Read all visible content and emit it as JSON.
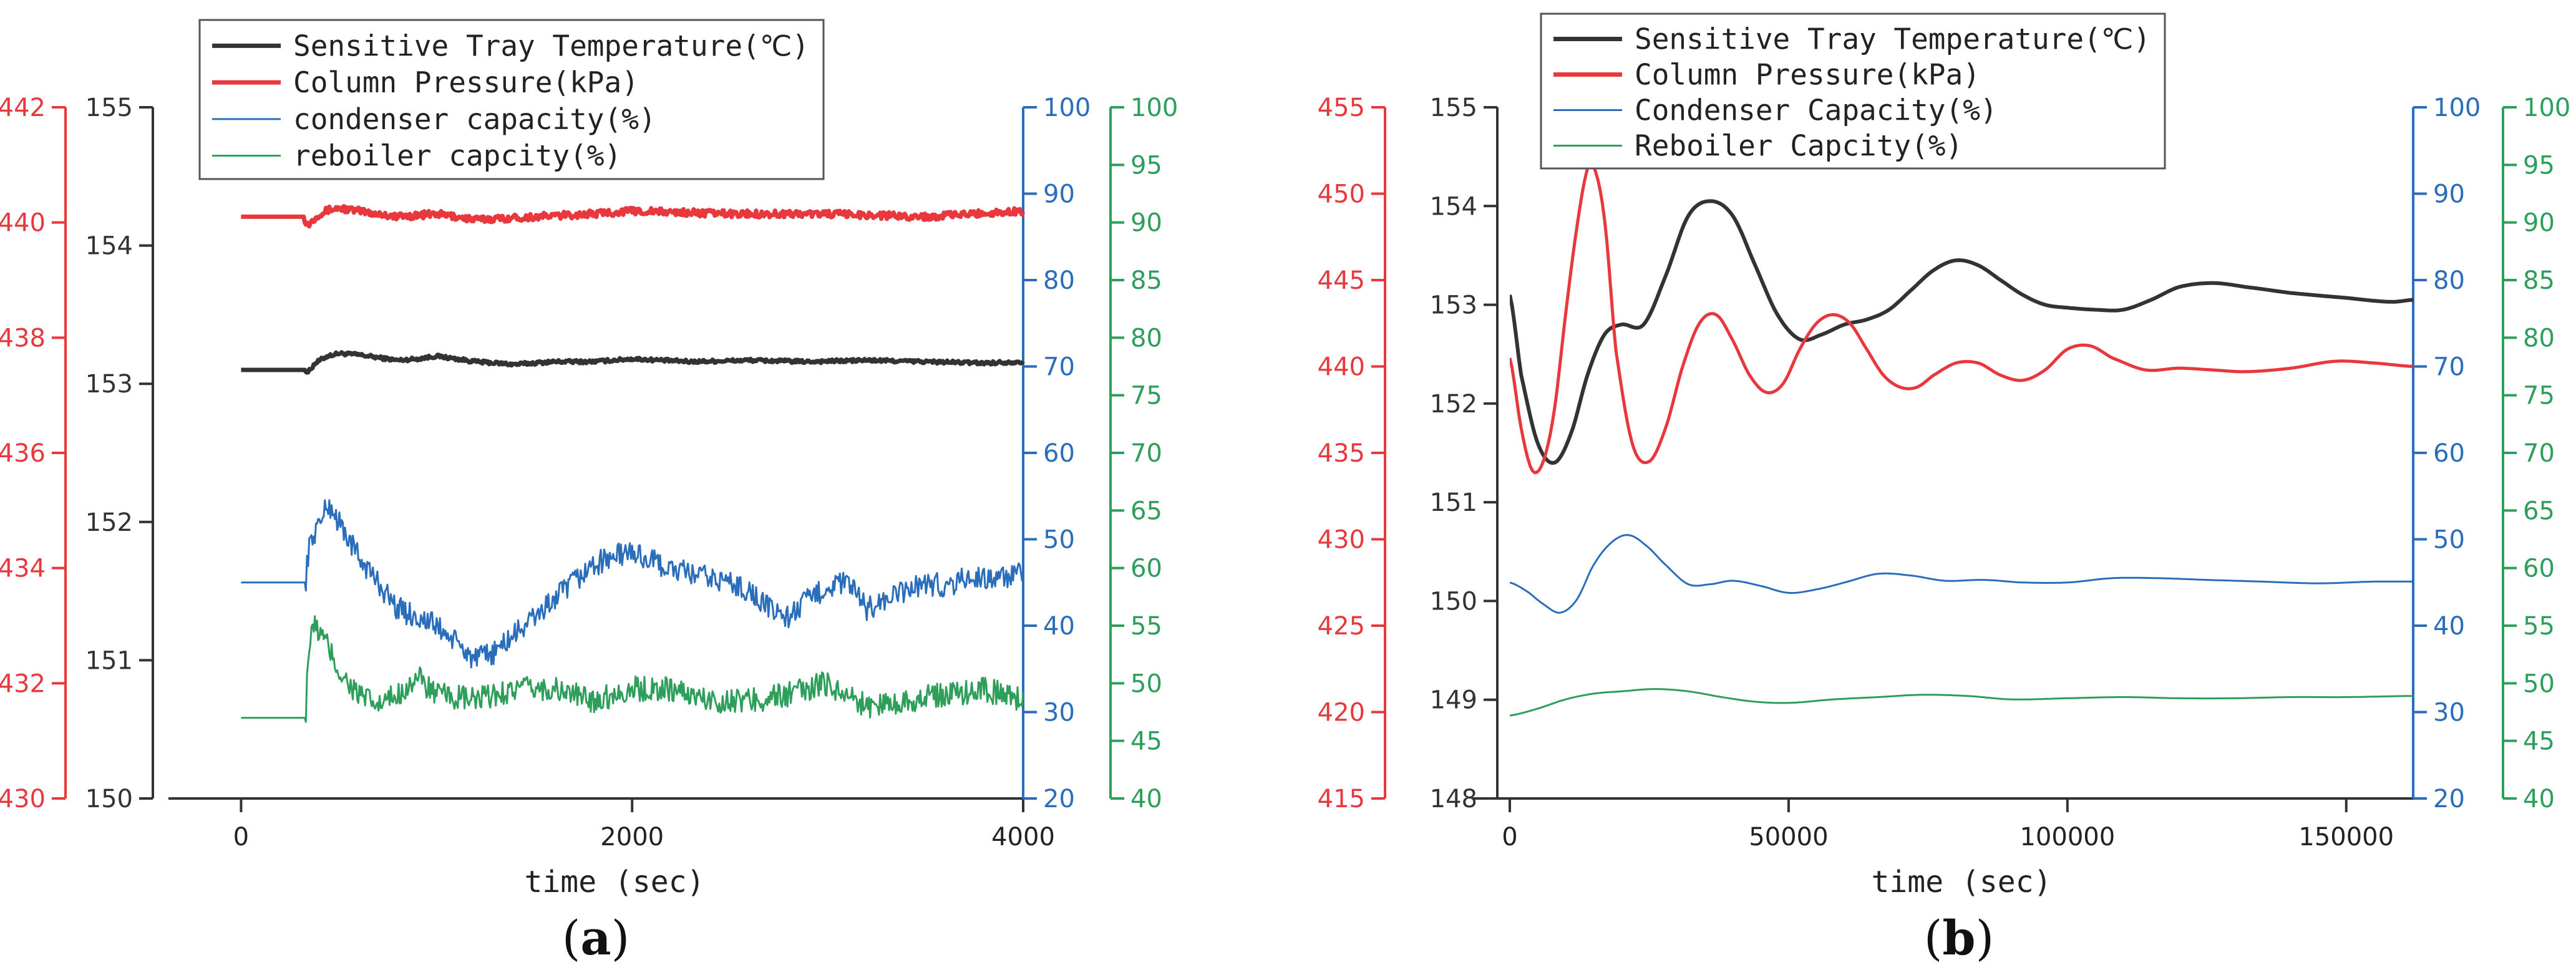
{
  "chart_data": [
    {
      "type": "line",
      "panel_label": "(a)",
      "xlabel": "time (sec)",
      "xlim": [
        -180,
        4000
      ],
      "xticks": [
        0,
        2000,
        4000
      ],
      "axes": {
        "pressure": {
          "color": "#e8383d",
          "ylim": [
            430,
            442
          ],
          "ticks": [
            430,
            432,
            434,
            436,
            438,
            440,
            442
          ]
        },
        "temperature": {
          "color": "#333333",
          "ylim": [
            150,
            155
          ],
          "ticks": [
            150,
            151,
            152,
            153,
            154,
            155
          ]
        },
        "condenser": {
          "color": "#2a6ebb",
          "ylim": [
            20,
            100
          ],
          "ticks": [
            20,
            30,
            40,
            50,
            60,
            70,
            80,
            90,
            100
          ]
        },
        "reboiler": {
          "color": "#2e9e5b",
          "ylim": [
            40,
            100
          ],
          "ticks": [
            40,
            45,
            50,
            55,
            60,
            65,
            70,
            75,
            80,
            85,
            90,
            95,
            100
          ]
        }
      },
      "legend": [
        {
          "label": "Sensitive Tray Temperature(℃)",
          "color": "#333333"
        },
        {
          "label": "Column Pressure(kPa)",
          "color": "#e8383d"
        },
        {
          "label": "condenser capacity(%)",
          "color": "#2a6ebb"
        },
        {
          "label": "reboiler capcity(%)",
          "color": "#2e9e5b"
        }
      ],
      "series": [
        {
          "axis": "temperature",
          "color": "#333333",
          "width": 7,
          "noise": 0.012,
          "x": [
            0,
            330,
            340,
            380,
            440,
            500,
            600,
            700,
            800,
            900,
            1000,
            1200,
            1400,
            1600,
            1800,
            2000,
            2300,
            2600,
            2900,
            3200,
            3500,
            3800,
            4000
          ],
          "y": [
            153.1,
            153.1,
            153.08,
            153.15,
            153.2,
            153.22,
            153.21,
            153.19,
            153.17,
            153.18,
            153.2,
            153.16,
            153.14,
            153.16,
            153.16,
            153.18,
            153.16,
            153.17,
            153.16,
            153.17,
            153.16,
            153.15,
            153.16
          ]
        },
        {
          "axis": "pressure",
          "color": "#e8383d",
          "width": 7,
          "noise": 0.06,
          "x": [
            0,
            320,
            340,
            400,
            450,
            500,
            600,
            700,
            800,
            1000,
            1200,
            1500,
            1800,
            2000,
            2500,
            3000,
            3500,
            4000
          ],
          "y": [
            440.1,
            440.1,
            439.95,
            440.15,
            440.22,
            440.25,
            440.2,
            440.15,
            440.1,
            440.15,
            440.05,
            440.1,
            440.15,
            440.2,
            440.15,
            440.15,
            440.1,
            440.2
          ]
        },
        {
          "axis": "condenser",
          "color": "#2a6ebb",
          "width": 3,
          "noise": 1.4,
          "x": [
            0,
            330,
            340,
            360,
            400,
            450,
            500,
            600,
            700,
            800,
            900,
            1000,
            1100,
            1200,
            1300,
            1400,
            1500,
            1600,
            1700,
            1800,
            1900,
            2000,
            2100,
            2200,
            2300,
            2400,
            2500,
            2600,
            2700,
            2800,
            2900,
            3000,
            3100,
            3200,
            3300,
            3400,
            3500,
            3600,
            3700,
            3800,
            3900,
            4000
          ],
          "y": [
            45,
            45,
            48,
            50,
            52,
            54,
            52,
            48,
            45,
            42,
            41,
            40,
            38,
            36,
            37,
            39,
            41,
            43,
            45,
            47,
            48,
            48.5,
            47.5,
            46.5,
            46,
            45.5,
            45,
            44,
            42,
            41,
            43,
            44.5,
            45,
            42,
            43,
            44,
            45,
            44.5,
            45.5,
            45.5,
            45.5,
            46
          ]
        },
        {
          "axis": "reboiler",
          "color": "#2e9e5b",
          "width": 3,
          "noise": 1.1,
          "x": [
            0,
            330,
            340,
            370,
            400,
            450,
            500,
            600,
            700,
            800,
            900,
            1000,
            1200,
            1400,
            1600,
            1800,
            2000,
            2200,
            2400,
            2600,
            2800,
            3000,
            3200,
            3400,
            3600,
            3800,
            4000
          ],
          "y": [
            47,
            47,
            52,
            55,
            54.5,
            53,
            51,
            49,
            48,
            49,
            50.5,
            49,
            48.5,
            49.5,
            49.5,
            48.5,
            49.5,
            49.5,
            48.5,
            48.5,
            49,
            50,
            48,
            48.5,
            49,
            49.5,
            48.5
          ]
        }
      ]
    },
    {
      "type": "line",
      "panel_label": "(b)",
      "xlabel": "time (sec)",
      "xlim": [
        0,
        162000
      ],
      "xticks": [
        0,
        50000,
        100000,
        150000
      ],
      "axes": {
        "pressure": {
          "color": "#e8383d",
          "ylim": [
            415,
            455
          ],
          "ticks": [
            415,
            420,
            425,
            430,
            435,
            440,
            445,
            450,
            455
          ]
        },
        "temperature": {
          "color": "#333333",
          "ylim": [
            148,
            155
          ],
          "ticks": [
            148,
            149,
            150,
            151,
            152,
            153,
            154,
            155
          ]
        },
        "condenser": {
          "color": "#2a6ebb",
          "ylim": [
            20,
            100
          ],
          "ticks": [
            20,
            30,
            40,
            50,
            60,
            70,
            80,
            90,
            100
          ]
        },
        "reboiler": {
          "color": "#2e9e5b",
          "ylim": [
            40,
            100
          ],
          "ticks": [
            40,
            45,
            50,
            55,
            60,
            65,
            70,
            75,
            80,
            85,
            90,
            95,
            100
          ]
        }
      },
      "legend": [
        {
          "label": "Sensitive Tray Temperature(℃)",
          "color": "#333333"
        },
        {
          "label": "Column Pressure(kPa)",
          "color": "#e8383d"
        },
        {
          "label": "Condenser Capacity(%)",
          "color": "#2a6ebb"
        },
        {
          "label": "Reboiler Capcity(%)",
          "color": "#2e9e5b"
        }
      ],
      "series": [
        {
          "axis": "temperature",
          "color": "#333333",
          "width": 6,
          "noise": 0,
          "x": [
            0,
            2000,
            5000,
            8000,
            11000,
            14000,
            17000,
            20000,
            24000,
            28000,
            32000,
            36000,
            40000,
            44000,
            48000,
            52000,
            56000,
            60000,
            64000,
            68000,
            72000,
            76000,
            80000,
            84000,
            88000,
            92000,
            96000,
            100000,
            105000,
            110000,
            115000,
            120000,
            126000,
            132000,
            140000,
            150000,
            158000,
            162000
          ],
          "y": [
            153.1,
            152.3,
            151.6,
            151.4,
            151.7,
            152.3,
            152.7,
            152.8,
            152.8,
            153.3,
            153.9,
            154.05,
            153.9,
            153.4,
            152.9,
            152.65,
            152.7,
            152.8,
            152.85,
            152.95,
            153.15,
            153.35,
            153.45,
            153.4,
            153.25,
            153.1,
            153.0,
            152.97,
            152.95,
            152.95,
            153.05,
            153.18,
            153.22,
            153.18,
            153.12,
            153.07,
            153.03,
            153.05
          ]
        },
        {
          "axis": "pressure",
          "color": "#e8383d",
          "width": 5,
          "noise": 0,
          "x": [
            0,
            2000,
            4000,
            6000,
            8000,
            10000,
            12000,
            14000,
            15000,
            17000,
            19000,
            22000,
            25000,
            28000,
            31000,
            34000,
            37000,
            40000,
            43000,
            46000,
            49000,
            52000,
            55000,
            58000,
            61000,
            64000,
            67000,
            70000,
            73000,
            76000,
            80000,
            84000,
            88000,
            92000,
            96000,
            100000,
            104000,
            108000,
            114000,
            120000,
            126000,
            132000,
            140000,
            148000,
            155000,
            162000
          ],
          "y": [
            440.5,
            436.5,
            434,
            434.5,
            437.5,
            443,
            448,
            451.5,
            451.6,
            448.5,
            441,
            435.5,
            434.5,
            436.5,
            440,
            442.5,
            443,
            441.5,
            439.5,
            438.5,
            439,
            441,
            442.5,
            443,
            442.5,
            441,
            439.5,
            438.8,
            438.8,
            439.5,
            440.2,
            440.2,
            439.5,
            439.2,
            439.8,
            441,
            441.2,
            440.5,
            439.8,
            439.9,
            439.8,
            439.7,
            439.9,
            440.3,
            440.2,
            440
          ]
        },
        {
          "axis": "condenser",
          "color": "#2a6ebb",
          "width": 3,
          "noise": 0,
          "x": [
            0,
            3000,
            6000,
            9000,
            12000,
            15000,
            18000,
            21000,
            24000,
            28000,
            32000,
            36000,
            40000,
            45000,
            50000,
            55000,
            60000,
            66000,
            72000,
            78000,
            85000,
            92000,
            100000,
            108000,
            116000,
            125000,
            135000,
            145000,
            155000,
            162000
          ],
          "y": [
            45,
            44,
            42.5,
            41.5,
            43,
            47,
            49.5,
            50.5,
            49.5,
            47,
            44.8,
            44.8,
            45.2,
            44.6,
            43.8,
            44.2,
            45,
            46,
            45.8,
            45.2,
            45.3,
            45,
            45,
            45.5,
            45.5,
            45.3,
            45.1,
            44.9,
            45.1,
            45.1
          ]
        },
        {
          "axis": "reboiler",
          "color": "#2e9e5b",
          "width": 3,
          "noise": 0,
          "x": [
            0,
            5000,
            10000,
            15000,
            20000,
            26000,
            32000,
            38000,
            44000,
            50000,
            58000,
            66000,
            74000,
            82000,
            90000,
            100000,
            110000,
            120000,
            130000,
            140000,
            150000,
            162000
          ],
          "y": [
            47.2,
            47.8,
            48.6,
            49.1,
            49.3,
            49.5,
            49.3,
            48.8,
            48.4,
            48.3,
            48.6,
            48.8,
            49,
            48.9,
            48.6,
            48.7,
            48.8,
            48.7,
            48.7,
            48.8,
            48.8,
            48.9
          ]
        }
      ]
    }
  ]
}
